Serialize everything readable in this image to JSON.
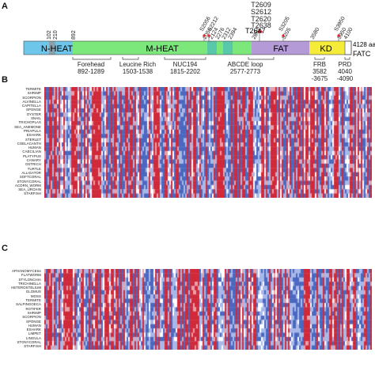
{
  "panels": {
    "a": "A",
    "b": "B",
    "c": "C"
  },
  "domain_map": {
    "total_length": "4128 aa",
    "domains": [
      {
        "name": "N-HEAT",
        "color": "#6ec7ea"
      },
      {
        "name": "M-HEAT",
        "color": "#7ce87c"
      },
      {
        "name": "FAT",
        "color": "#b59ad8"
      },
      {
        "name": "KD",
        "color": "#f5ec3a"
      },
      {
        "name": "FATC",
        "color": "#ffffff"
      }
    ],
    "positions": [
      "102",
      "210",
      "892",
      "2056",
      "2124",
      "2276",
      "2312",
      "2394",
      "2801",
      "3205",
      "3580",
      "3950",
      "4100"
    ],
    "sites": [
      "S2056",
      "S2212",
      "T2609",
      "S2612",
      "T2620",
      "T2638",
      "T2647",
      "S3205",
      "S3950"
    ],
    "regions": [
      {
        "name": "Forehead",
        "range": "892-1289"
      },
      {
        "name": "Leucine Rich",
        "range": "1503-1538"
      },
      {
        "name": "NUC194",
        "range": "1815-2202"
      },
      {
        "name": "ABCDE loop",
        "range": "2577-2773"
      },
      {
        "name": "FRB",
        "range": "3582\n-3675"
      },
      {
        "name": "PRD",
        "range": "4040\n-4090"
      }
    ]
  },
  "alignment_b": {
    "species": [
      "TERMITE",
      "SHRIMP",
      "SCORPION",
      "ALVINELLA",
      "CAPITELLA",
      "SPONGE",
      "OYSTER",
      "SNAIL",
      "TRICHOPLAX",
      "SEA_ANEMONE",
      "PRIAPULA",
      "ESHARK",
      "STERLET",
      "COELACANTH",
      "HUMAN",
      "CAECILIAN",
      "PLATYPUS",
      "CANARY",
      "OSTRICH",
      "TURTLE",
      "ALLIGATOR",
      "SOFTCORAL",
      "STONYCORAL",
      "ACORN_WORM",
      "SEA_URCHIN",
      "STARFISH"
    ]
  },
  "alignment_c": {
    "species": [
      "APHANOMYCESe",
      "FLATWORM",
      "STYLONCHIA",
      "TRICHINELLA",
      "HETEROSTELIUM",
      "GLOMUS",
      "MOSS",
      "TERMITE",
      "SALPINGOECA",
      "ROTIFER",
      "SHRIMP",
      "SCORPION",
      "SPONGE",
      "HUMAN",
      "ESHARK",
      "LIMPET",
      "LINGULA",
      "STONYCORAL",
      "STARFISH"
    ]
  },
  "colors": {
    "red": "#d02a3a",
    "blue": "#4a68c0",
    "light_blue": "#a8b8e8",
    "light_red": "#e9a0a8"
  }
}
